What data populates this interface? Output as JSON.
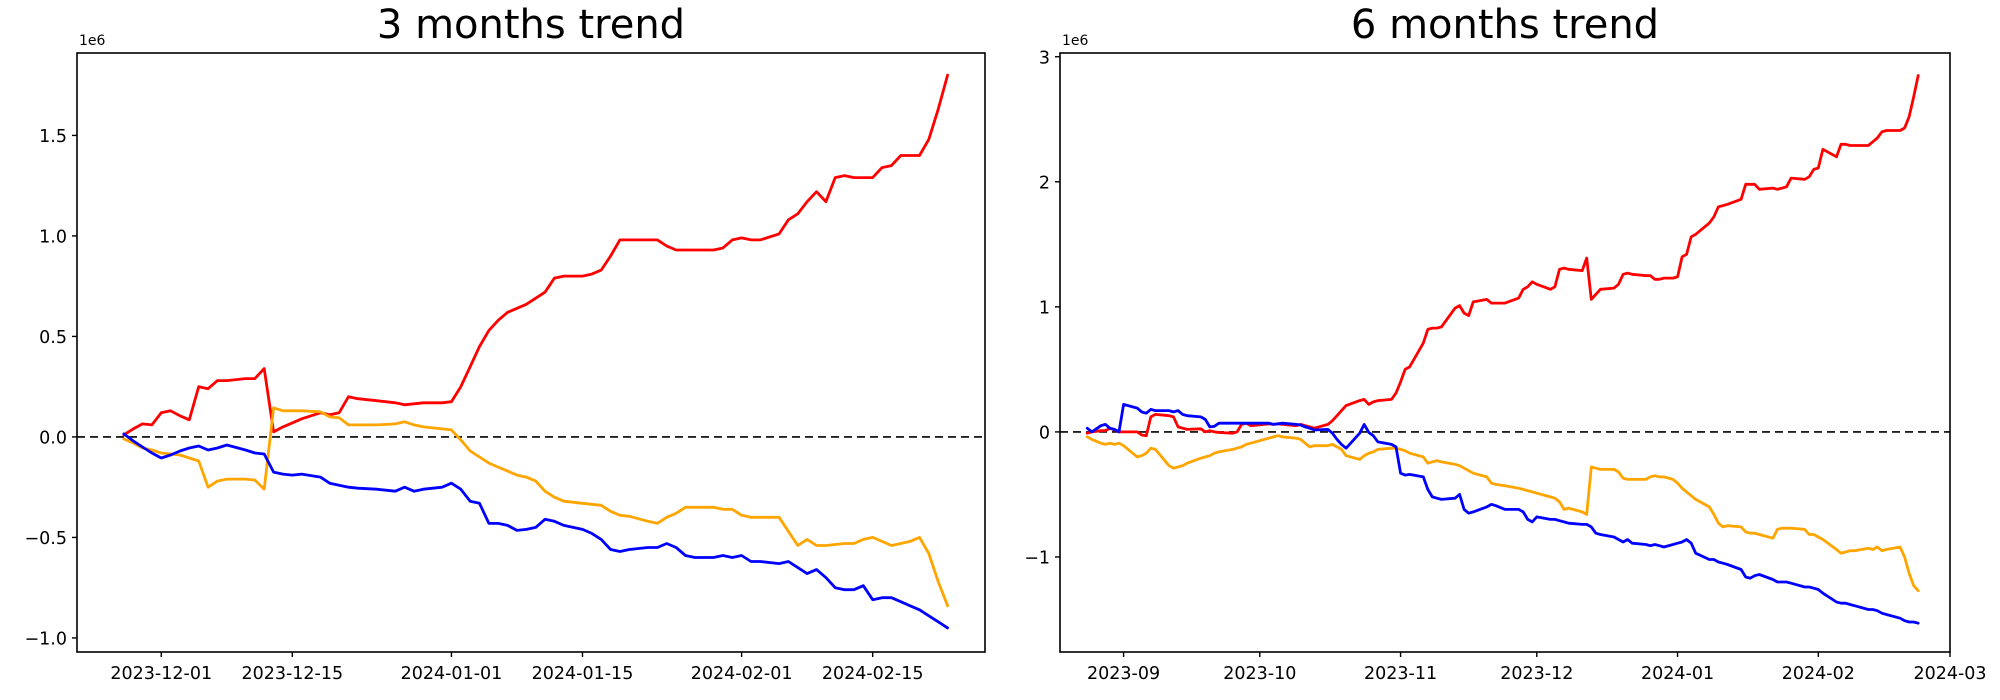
{
  "figure_background": "#ffffff",
  "axis_color": "#000000",
  "chart_data": [
    {
      "type": "line",
      "title": "3 months trend",
      "offset_label": "1e6",
      "grid": false,
      "legend": "none",
      "zero_line": {
        "show": true,
        "style": "dashed",
        "color": "#000000"
      },
      "xlim": [
        "2023-11-22",
        "2024-02-27"
      ],
      "ylim": [
        -1.07,
        1.91
      ],
      "yticks": [
        -1.0,
        -0.5,
        0.0,
        0.5,
        1.0,
        1.5
      ],
      "ytick_labels": [
        "−1.0",
        "−0.5",
        "0.0",
        "0.5",
        "1.0",
        "1.5"
      ],
      "xticks": [
        {
          "date": "2023-12-01",
          "label": "2023-12-01"
        },
        {
          "date": "2023-12-15",
          "label": "2023-12-15"
        },
        {
          "date": "2024-01-01",
          "label": "2024-01-01"
        },
        {
          "date": "2024-01-15",
          "label": "2024-01-15"
        },
        {
          "date": "2024-02-01",
          "label": "2024-02-01"
        },
        {
          "date": "2024-02-15",
          "label": "2024-02-15"
        }
      ],
      "dates": [
        "2023-11-27",
        "2023-11-28",
        "2023-11-29",
        "2023-11-30",
        "2023-12-01",
        "2023-12-02",
        "2023-12-03",
        "2023-12-04",
        "2023-12-05",
        "2023-12-06",
        "2023-12-07",
        "2023-12-08",
        "2023-12-10",
        "2023-12-11",
        "2023-12-12",
        "2023-12-13",
        "2023-12-14",
        "2023-12-15",
        "2023-12-16",
        "2023-12-18",
        "2023-12-19",
        "2023-12-20",
        "2023-12-21",
        "2023-12-22",
        "2023-12-24",
        "2023-12-26",
        "2023-12-27",
        "2023-12-28",
        "2023-12-29",
        "2023-12-31",
        "2024-01-01",
        "2024-01-02",
        "2024-01-03",
        "2024-01-04",
        "2024-01-05",
        "2024-01-06",
        "2024-01-07",
        "2024-01-08",
        "2024-01-09",
        "2024-01-10",
        "2024-01-11",
        "2024-01-12",
        "2024-01-13",
        "2024-01-15",
        "2024-01-16",
        "2024-01-17",
        "2024-01-18",
        "2024-01-19",
        "2024-01-20",
        "2024-01-22",
        "2024-01-23",
        "2024-01-24",
        "2024-01-25",
        "2024-01-26",
        "2024-01-27",
        "2024-01-29",
        "2024-01-30",
        "2024-01-31",
        "2024-02-01",
        "2024-02-02",
        "2024-02-03",
        "2024-02-05",
        "2024-02-06",
        "2024-02-07",
        "2024-02-08",
        "2024-02-09",
        "2024-02-10",
        "2024-02-11",
        "2024-02-12",
        "2024-02-13",
        "2024-02-14",
        "2024-02-15",
        "2024-02-16",
        "2024-02-17",
        "2024-02-18",
        "2024-02-19",
        "2024-02-20",
        "2024-02-21",
        "2024-02-22",
        "2024-02-23"
      ],
      "unit": "1e6",
      "series": [
        {
          "name": "red",
          "color": "#ff0000",
          "values": [
            0.01,
            0.04,
            0.065,
            0.06,
            0.12,
            0.13,
            0.105,
            0.085,
            0.25,
            0.24,
            0.28,
            0.28,
            0.29,
            0.29,
            0.34,
            0.025,
            0.05,
            0.07,
            0.09,
            0.12,
            0.11,
            0.12,
            0.2,
            0.19,
            0.18,
            0.17,
            0.16,
            0.165,
            0.17,
            0.17,
            0.175,
            0.25,
            0.35,
            0.45,
            0.53,
            0.58,
            0.62,
            0.64,
            0.66,
            0.69,
            0.72,
            0.79,
            0.8,
            0.8,
            0.81,
            0.83,
            0.9,
            0.98,
            0.98,
            0.98,
            0.98,
            0.95,
            0.93,
            0.93,
            0.93,
            0.93,
            0.94,
            0.98,
            0.99,
            0.98,
            0.98,
            1.01,
            1.08,
            1.11,
            1.17,
            1.22,
            1.17,
            1.29,
            1.3,
            1.29,
            1.29,
            1.29,
            1.34,
            1.35,
            1.4,
            1.4,
            1.4,
            1.48,
            1.63,
            1.8
          ]
        },
        {
          "name": "orange",
          "color": "#ffa500",
          "values": [
            -0.01,
            -0.03,
            -0.055,
            -0.065,
            -0.08,
            -0.085,
            -0.09,
            -0.105,
            -0.12,
            -0.25,
            -0.22,
            -0.21,
            -0.21,
            -0.215,
            -0.26,
            0.145,
            0.13,
            0.13,
            0.13,
            0.125,
            0.1,
            0.095,
            0.06,
            0.06,
            0.06,
            0.065,
            0.075,
            0.06,
            0.05,
            0.04,
            0.035,
            -0.015,
            -0.07,
            -0.1,
            -0.13,
            -0.15,
            -0.17,
            -0.19,
            -0.2,
            -0.22,
            -0.27,
            -0.3,
            -0.32,
            -0.33,
            -0.335,
            -0.34,
            -0.37,
            -0.39,
            -0.395,
            -0.42,
            -0.43,
            -0.4,
            -0.38,
            -0.35,
            -0.35,
            -0.35,
            -0.36,
            -0.36,
            -0.39,
            -0.4,
            -0.4,
            -0.4,
            -0.47,
            -0.54,
            -0.51,
            -0.54,
            -0.54,
            -0.535,
            -0.53,
            -0.53,
            -0.51,
            -0.5,
            -0.52,
            -0.54,
            -0.53,
            -0.52,
            -0.5,
            -0.58,
            -0.72,
            -0.84
          ]
        },
        {
          "name": "blue",
          "color": "#0000ff",
          "values": [
            0.015,
            -0.02,
            -0.05,
            -0.08,
            -0.105,
            -0.09,
            -0.07,
            -0.055,
            -0.045,
            -0.065,
            -0.055,
            -0.04,
            -0.065,
            -0.08,
            -0.085,
            -0.175,
            -0.185,
            -0.19,
            -0.185,
            -0.2,
            -0.23,
            -0.24,
            -0.25,
            -0.255,
            -0.26,
            -0.27,
            -0.25,
            -0.27,
            -0.26,
            -0.25,
            -0.23,
            -0.26,
            -0.32,
            -0.33,
            -0.43,
            -0.43,
            -0.44,
            -0.465,
            -0.46,
            -0.45,
            -0.41,
            -0.42,
            -0.44,
            -0.46,
            -0.48,
            -0.51,
            -0.56,
            -0.57,
            -0.56,
            -0.55,
            -0.55,
            -0.53,
            -0.55,
            -0.59,
            -0.6,
            -0.6,
            -0.59,
            -0.6,
            -0.59,
            -0.62,
            -0.62,
            -0.63,
            -0.62,
            -0.65,
            -0.68,
            -0.66,
            -0.7,
            -0.75,
            -0.76,
            -0.76,
            -0.74,
            -0.81,
            -0.8,
            -0.8,
            -0.82,
            -0.84,
            -0.86,
            -0.89,
            -0.92,
            -0.95
          ]
        }
      ]
    },
    {
      "type": "line",
      "title": "6 months trend",
      "offset_label": "1e6",
      "grid": false,
      "legend": "none",
      "zero_line": {
        "show": true,
        "style": "dashed",
        "color": "#000000"
      },
      "xlim": [
        "2023-08-18",
        "2024-03-01"
      ],
      "ylim": [
        -1.76,
        3.03
      ],
      "yticks": [
        -1,
        0,
        1,
        2,
        3
      ],
      "ytick_labels": [
        "−1",
        "0",
        "1",
        "2",
        "3"
      ],
      "xticks": [
        {
          "date": "2023-09-01",
          "label": "2023-09"
        },
        {
          "date": "2023-10-01",
          "label": "2023-10"
        },
        {
          "date": "2023-11-01",
          "label": "2023-11"
        },
        {
          "date": "2023-12-01",
          "label": "2023-12"
        },
        {
          "date": "2024-01-01",
          "label": "2024-01"
        },
        {
          "date": "2024-02-01",
          "label": "2024-02"
        },
        {
          "date": "2024-03-01",
          "label": "2024-03"
        }
      ],
      "dates": [
        "2023-08-24",
        "2023-08-25",
        "2023-08-27",
        "2023-08-28",
        "2023-08-29",
        "2023-08-30",
        "2023-08-31",
        "2023-09-01",
        "2023-09-04",
        "2023-09-05",
        "2023-09-06",
        "2023-09-07",
        "2023-09-08",
        "2023-09-11",
        "2023-09-12",
        "2023-09-13",
        "2023-09-14",
        "2023-09-15",
        "2023-09-18",
        "2023-09-19",
        "2023-09-20",
        "2023-09-21",
        "2023-09-22",
        "2023-09-25",
        "2023-09-26",
        "2023-09-27",
        "2023-09-28",
        "2023-09-29",
        "2023-10-02",
        "2023-10-03",
        "2023-10-04",
        "2023-10-05",
        "2023-10-06",
        "2023-10-09",
        "2023-10-10",
        "2023-10-11",
        "2023-10-12",
        "2023-10-13",
        "2023-10-16",
        "2023-10-17",
        "2023-10-18",
        "2023-10-19",
        "2023-10-20",
        "2023-10-23",
        "2023-10-24",
        "2023-10-25",
        "2023-10-26",
        "2023-10-27",
        "2023-10-30",
        "2023-10-31",
        "2023-11-01",
        "2023-11-02",
        "2023-11-03",
        "2023-11-06",
        "2023-11-07",
        "2023-11-08",
        "2023-11-09",
        "2023-11-10",
        "2023-11-13",
        "2023-11-14",
        "2023-11-15",
        "2023-11-16",
        "2023-11-17",
        "2023-11-20",
        "2023-11-21",
        "2023-11-22",
        "2023-11-24",
        "2023-11-27",
        "2023-11-28",
        "2023-11-29",
        "2023-11-30",
        "2023-12-01",
        "2023-12-04",
        "2023-12-05",
        "2023-12-06",
        "2023-12-07",
        "2023-12-08",
        "2023-12-11",
        "2023-12-12",
        "2023-12-13",
        "2023-12-14",
        "2023-12-15",
        "2023-12-18",
        "2023-12-19",
        "2023-12-20",
        "2023-12-21",
        "2023-12-22",
        "2023-12-25",
        "2023-12-26",
        "2023-12-27",
        "2023-12-28",
        "2023-12-29",
        "2023-12-31",
        "2024-01-01",
        "2024-01-02",
        "2024-01-03",
        "2024-01-04",
        "2024-01-05",
        "2024-01-08",
        "2024-01-09",
        "2024-01-10",
        "2024-01-11",
        "2024-01-12",
        "2024-01-15",
        "2024-01-16",
        "2024-01-17",
        "2024-01-18",
        "2024-01-19",
        "2024-01-22",
        "2024-01-23",
        "2024-01-24",
        "2024-01-25",
        "2024-01-26",
        "2024-01-29",
        "2024-01-30",
        "2024-01-31",
        "2024-02-01",
        "2024-02-02",
        "2024-02-05",
        "2024-02-06",
        "2024-02-07",
        "2024-02-08",
        "2024-02-09",
        "2024-02-12",
        "2024-02-13",
        "2024-02-14",
        "2024-02-15",
        "2024-02-16",
        "2024-02-19",
        "2024-02-20",
        "2024-02-21",
        "2024-02-22",
        "2024-02-23"
      ],
      "unit": "1e6",
      "series": [
        {
          "name": "red",
          "color": "#ff0000",
          "values": [
            -0.01,
            0.0,
            0.01,
            0.01,
            0.03,
            0.015,
            0.0,
            0.0,
            0.0,
            -0.025,
            -0.03,
            0.12,
            0.14,
            0.13,
            0.12,
            0.04,
            0.03,
            0.02,
            0.025,
            0.0,
            0.01,
            0.0,
            -0.005,
            -0.01,
            0.0,
            0.06,
            0.07,
            0.05,
            0.06,
            0.065,
            0.06,
            0.065,
            0.06,
            0.05,
            0.06,
            0.05,
            0.04,
            0.03,
            0.06,
            0.09,
            0.13,
            0.17,
            0.21,
            0.25,
            0.26,
            0.22,
            0.24,
            0.25,
            0.26,
            0.31,
            0.4,
            0.5,
            0.52,
            0.71,
            0.82,
            0.83,
            0.83,
            0.84,
            0.99,
            1.01,
            0.95,
            0.93,
            1.04,
            1.06,
            1.03,
            1.03,
            1.03,
            1.07,
            1.14,
            1.16,
            1.2,
            1.18,
            1.14,
            1.16,
            1.3,
            1.31,
            1.3,
            1.29,
            1.39,
            1.06,
            1.1,
            1.14,
            1.15,
            1.18,
            1.26,
            1.27,
            1.26,
            1.25,
            1.25,
            1.22,
            1.22,
            1.23,
            1.23,
            1.24,
            1.4,
            1.42,
            1.56,
            1.58,
            1.67,
            1.72,
            1.8,
            1.81,
            1.82,
            1.86,
            1.98,
            1.98,
            1.98,
            1.94,
            1.95,
            1.94,
            1.95,
            1.96,
            2.03,
            2.02,
            2.04,
            2.1,
            2.11,
            2.26,
            2.2,
            2.3,
            2.3,
            2.29,
            2.29,
            2.29,
            2.32,
            2.35,
            2.4,
            2.41,
            2.41,
            2.43,
            2.52,
            2.68,
            2.85
          ]
        },
        {
          "name": "orange",
          "color": "#ffa500",
          "values": [
            -0.04,
            -0.06,
            -0.09,
            -0.1,
            -0.09,
            -0.1,
            -0.09,
            -0.11,
            -0.2,
            -0.19,
            -0.17,
            -0.13,
            -0.14,
            -0.27,
            -0.29,
            -0.28,
            -0.27,
            -0.25,
            -0.21,
            -0.2,
            -0.19,
            -0.17,
            -0.16,
            -0.14,
            -0.13,
            -0.12,
            -0.1,
            -0.09,
            -0.06,
            -0.05,
            -0.04,
            -0.03,
            -0.04,
            -0.05,
            -0.06,
            -0.09,
            -0.12,
            -0.11,
            -0.11,
            -0.1,
            -0.12,
            -0.14,
            -0.19,
            -0.22,
            -0.19,
            -0.17,
            -0.16,
            -0.14,
            -0.13,
            -0.13,
            -0.14,
            -0.15,
            -0.17,
            -0.2,
            -0.25,
            -0.24,
            -0.23,
            -0.24,
            -0.26,
            -0.27,
            -0.29,
            -0.31,
            -0.33,
            -0.36,
            -0.41,
            -0.42,
            -0.43,
            -0.45,
            -0.46,
            -0.47,
            -0.48,
            -0.49,
            -0.52,
            -0.53,
            -0.56,
            -0.62,
            -0.61,
            -0.64,
            -0.66,
            -0.28,
            -0.29,
            -0.3,
            -0.3,
            -0.32,
            -0.37,
            -0.38,
            -0.38,
            -0.38,
            -0.36,
            -0.35,
            -0.36,
            -0.36,
            -0.38,
            -0.41,
            -0.45,
            -0.48,
            -0.51,
            -0.54,
            -0.6,
            -0.66,
            -0.73,
            -0.76,
            -0.75,
            -0.76,
            -0.8,
            -0.81,
            -0.81,
            -0.82,
            -0.85,
            -0.78,
            -0.77,
            -0.77,
            -0.77,
            -0.78,
            -0.82,
            -0.82,
            -0.84,
            -0.86,
            -0.94,
            -0.97,
            -0.96,
            -0.95,
            -0.95,
            -0.93,
            -0.94,
            -0.92,
            -0.95,
            -0.94,
            -0.92,
            -1.0,
            -1.13,
            -1.23,
            -1.27
          ]
        },
        {
          "name": "blue",
          "color": "#0000ff",
          "values": [
            0.03,
            0.0,
            0.05,
            0.06,
            0.03,
            0.02,
            0.0,
            0.22,
            0.19,
            0.16,
            0.15,
            0.18,
            0.17,
            0.17,
            0.16,
            0.17,
            0.14,
            0.13,
            0.12,
            0.1,
            0.04,
            0.045,
            0.07,
            0.07,
            0.07,
            0.07,
            0.07,
            0.07,
            0.07,
            0.07,
            0.06,
            0.065,
            0.07,
            0.06,
            0.055,
            0.04,
            0.03,
            0.015,
            0.02,
            -0.01,
            -0.06,
            -0.1,
            -0.13,
            -0.01,
            0.06,
            -0.005,
            -0.03,
            -0.08,
            -0.1,
            -0.12,
            -0.33,
            -0.345,
            -0.34,
            -0.36,
            -0.46,
            -0.52,
            -0.53,
            -0.54,
            -0.53,
            -0.5,
            -0.62,
            -0.65,
            -0.64,
            -0.6,
            -0.58,
            -0.59,
            -0.62,
            -0.62,
            -0.64,
            -0.7,
            -0.72,
            -0.68,
            -0.7,
            -0.7,
            -0.71,
            -0.72,
            -0.73,
            -0.74,
            -0.74,
            -0.76,
            -0.81,
            -0.82,
            -0.84,
            -0.86,
            -0.88,
            -0.86,
            -0.89,
            -0.9,
            -0.91,
            -0.9,
            -0.91,
            -0.92,
            -0.9,
            -0.89,
            -0.88,
            -0.86,
            -0.89,
            -0.97,
            -1.02,
            -1.02,
            -1.04,
            -1.05,
            -1.06,
            -1.1,
            -1.16,
            -1.17,
            -1.15,
            -1.14,
            -1.18,
            -1.2,
            -1.2,
            -1.2,
            -1.21,
            -1.24,
            -1.24,
            -1.25,
            -1.26,
            -1.29,
            -1.36,
            -1.37,
            -1.37,
            -1.38,
            -1.39,
            -1.42,
            -1.42,
            -1.43,
            -1.45,
            -1.46,
            -1.49,
            -1.51,
            -1.52,
            -1.52,
            -1.53
          ]
        }
      ]
    }
  ]
}
